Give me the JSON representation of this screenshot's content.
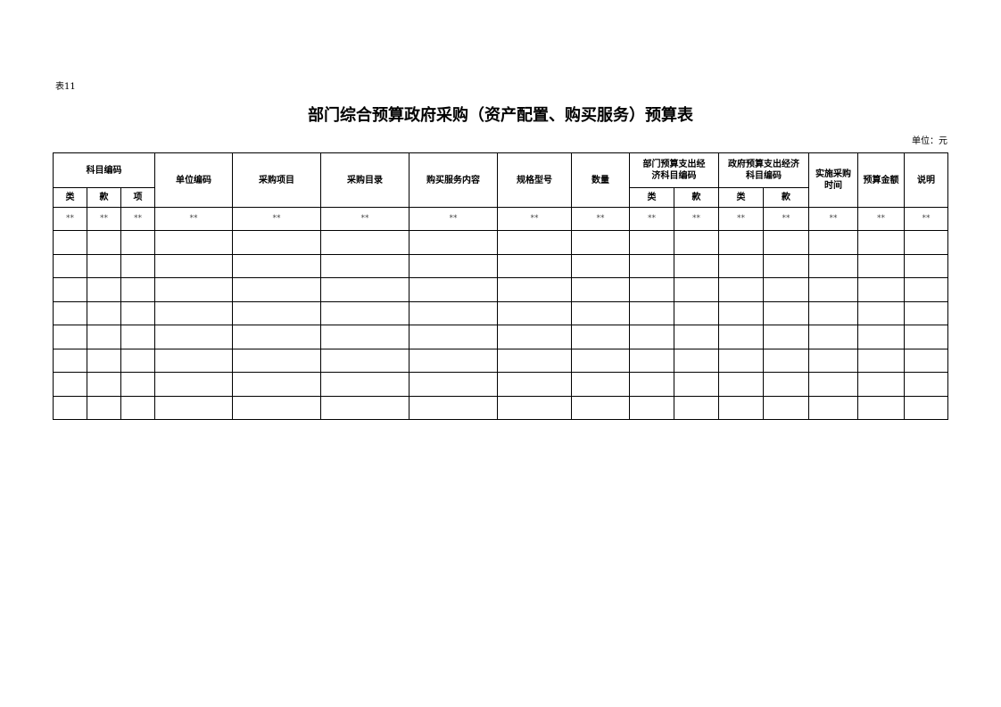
{
  "table_no": "表11",
  "title": "部门综合预算政府采购（资产配置、购买服务）预算表",
  "unit": "单位：元",
  "headers": {
    "subject_code": "科目编码",
    "lei": "类",
    "kuan": "款",
    "xiang": "项",
    "unit_code": "单位编码",
    "purchase_item": "采购项目",
    "purchase_catalog": "采购目录",
    "service_content": "购买服务内容",
    "spec_model": "规格型号",
    "quantity": "数量",
    "dept_econ_code": "部门预算支出经济科目编码",
    "gov_econ_code": "政府预算支出经济科目编码",
    "purchase_time": "实施采购时间",
    "budget_amount": "预算金额",
    "remark": "说明"
  },
  "placeholder_row": [
    "**",
    "**",
    "**",
    "**",
    "**",
    "**",
    "**",
    "**",
    "**",
    "**",
    "**",
    "**",
    "**",
    "**",
    "**",
    "**"
  ],
  "empty_row_count": 8
}
